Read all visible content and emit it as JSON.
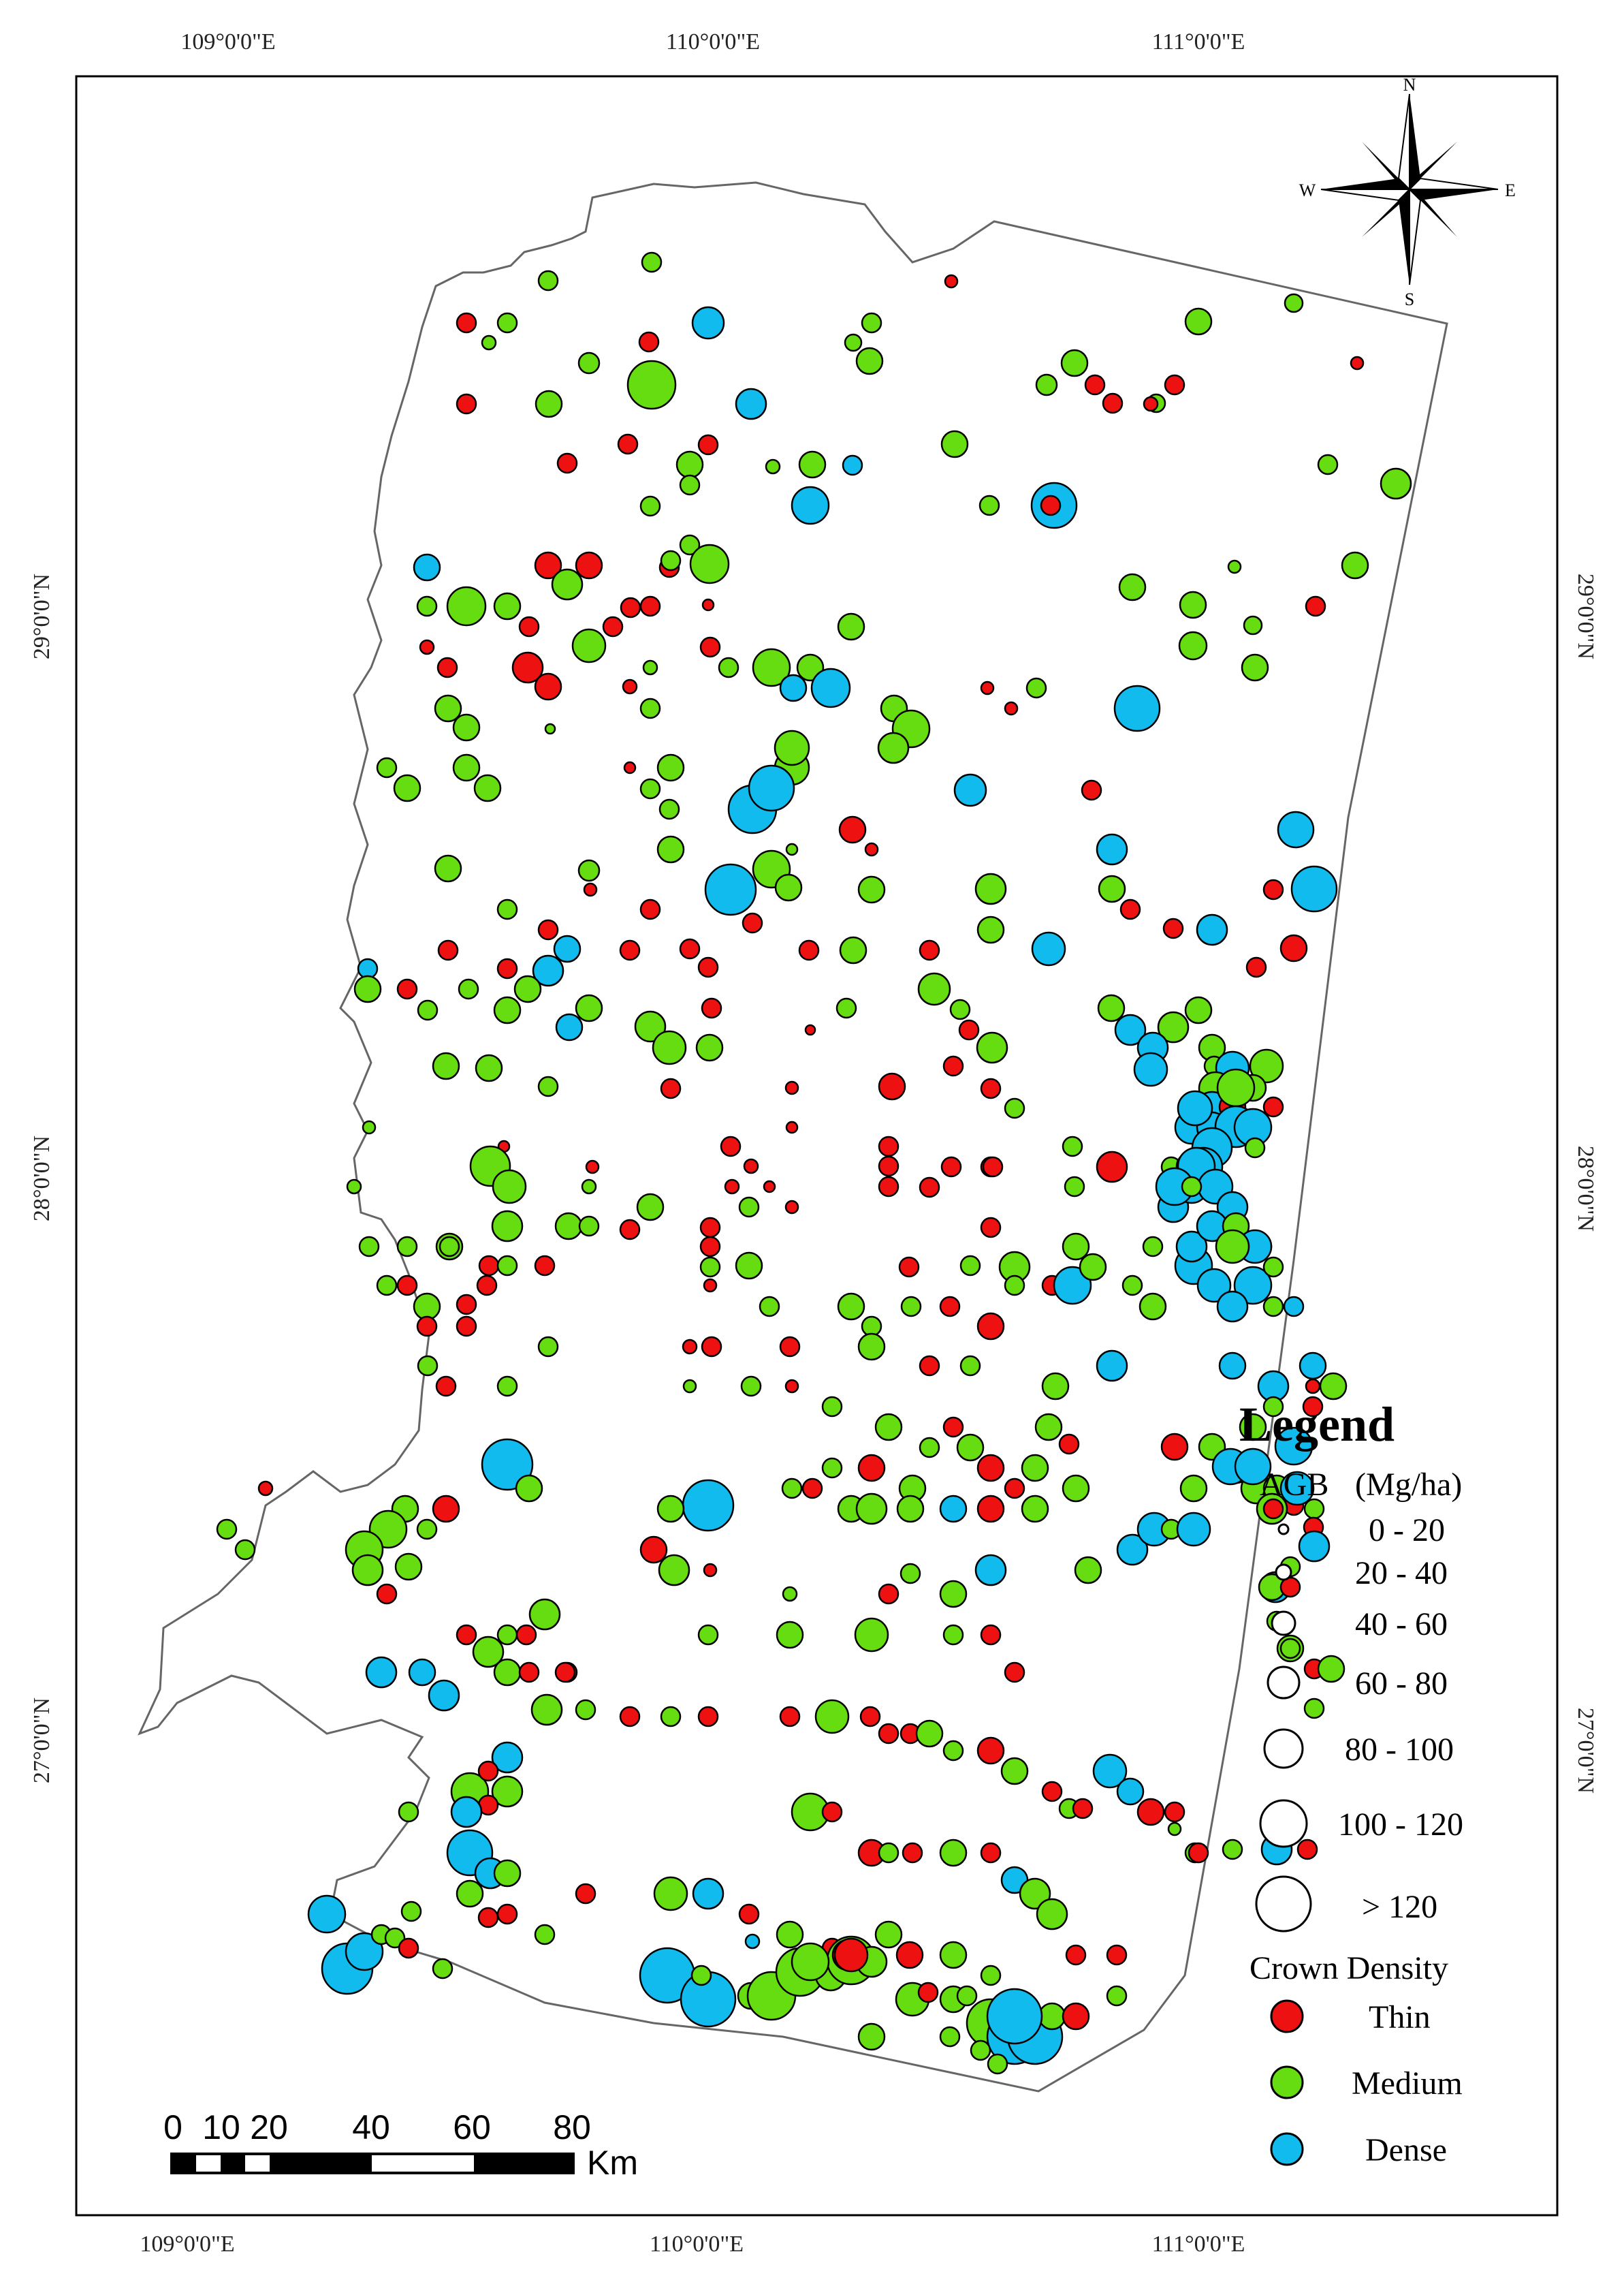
{
  "map": {
    "lon_ticks": [
      "109°0'0\"E",
      "110°0'0\"E",
      "111°0'0\"E"
    ],
    "lat_ticks": [
      "29°0'0\"N",
      "28°0'0\"N",
      "27°0'0\"N"
    ]
  },
  "north_arrow": {
    "n": "N",
    "s": "S",
    "e": "E",
    "w": "W"
  },
  "legend": {
    "title": "Legend",
    "agb_label": "AGB",
    "agb_unit": "(Mg/ha)",
    "size_classes": [
      "0 - 20",
      "20 - 40",
      "40 - 60",
      "60 - 80",
      "80 - 100",
      "100 - 120",
      "> 120"
    ],
    "crown_title": "Crown Density",
    "crown_classes": [
      {
        "label": "Thin",
        "color": "#ee1111"
      },
      {
        "label": "Medium",
        "color": "#66dd11"
      },
      {
        "label": "Dense",
        "color": "#11bbee"
      }
    ]
  },
  "scale_bar": {
    "labels": [
      "0",
      "10",
      "20",
      "40",
      "60",
      "80"
    ],
    "unit": "Km"
  }
}
